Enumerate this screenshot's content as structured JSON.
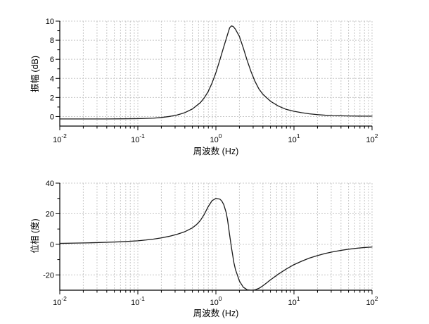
{
  "figure": {
    "background": "#ffffff",
    "description": "Two stacked frequency-response plots (amplitude and phase) versus frequency on a logarithmic axis"
  },
  "style": {
    "grid_color": "#c8c8c8",
    "axis_color": "#000000",
    "curve_color": "#1a1a1a"
  },
  "chart_data": [
    {
      "type": "line",
      "title": "",
      "xlabel": "周波数 (Hz)",
      "ylabel": "振幅 (dB)",
      "x_scale": "log",
      "xlim": [
        0.01,
        100
      ],
      "ylim": [
        -1,
        10
      ],
      "x_tick_base": "10",
      "x_tick_exponents": [
        -2,
        -1,
        0,
        1,
        2
      ],
      "y_major_ticks": [
        0,
        2,
        4,
        6,
        8,
        10
      ],
      "y_minor_ticks": [
        1,
        3,
        5,
        7,
        9
      ],
      "grid": {
        "vertical": "all log ticks",
        "horizontal": "major ticks",
        "line_style": "dashed"
      },
      "legend": null,
      "series": [
        {
          "name": "amplitude",
          "color": "#1a1a1a",
          "points": [
            [
              0.01,
              -0.25
            ],
            [
              0.0158,
              -0.25
            ],
            [
              0.0251,
              -0.25
            ],
            [
              0.0398,
              -0.25
            ],
            [
              0.0631,
              -0.24
            ],
            [
              0.1,
              -0.22
            ],
            [
              0.126,
              -0.2
            ],
            [
              0.158,
              -0.17
            ],
            [
              0.2,
              -0.1
            ],
            [
              0.251,
              0.0
            ],
            [
              0.316,
              0.15
            ],
            [
              0.398,
              0.4
            ],
            [
              0.501,
              0.8
            ],
            [
              0.631,
              1.45
            ],
            [
              0.708,
              1.95
            ],
            [
              0.794,
              2.6
            ],
            [
              0.891,
              3.5
            ],
            [
              1.0,
              4.6
            ],
            [
              1.12,
              5.9
            ],
            [
              1.26,
              7.3
            ],
            [
              1.41,
              8.6
            ],
            [
              1.5,
              9.3
            ],
            [
              1.58,
              9.5
            ],
            [
              1.66,
              9.45
            ],
            [
              1.78,
              9.15
            ],
            [
              2.0,
              8.4
            ],
            [
              2.24,
              7.2
            ],
            [
              2.51,
              5.9
            ],
            [
              2.82,
              4.7
            ],
            [
              3.16,
              3.7
            ],
            [
              3.55,
              2.9
            ],
            [
              3.98,
              2.35
            ],
            [
              5.01,
              1.6
            ],
            [
              6.31,
              1.1
            ],
            [
              7.94,
              0.75
            ],
            [
              10,
              0.55
            ],
            [
              12.6,
              0.4
            ],
            [
              15.8,
              0.28
            ],
            [
              20,
              0.2
            ],
            [
              25.1,
              0.14
            ],
            [
              31.6,
              0.1
            ],
            [
              39.8,
              0.08
            ],
            [
              50.1,
              0.06
            ],
            [
              63.1,
              0.05
            ],
            [
              79.4,
              0.04
            ],
            [
              100,
              0.04
            ]
          ]
        }
      ]
    },
    {
      "type": "line",
      "title": "",
      "xlabel": "周波数 (Hz)",
      "ylabel": "位相 (度)",
      "x_scale": "log",
      "xlim": [
        0.01,
        100
      ],
      "ylim": [
        -30,
        40
      ],
      "x_tick_base": "10",
      "x_tick_exponents": [
        -2,
        -1,
        0,
        1,
        2
      ],
      "y_major_ticks": [
        -20,
        0,
        20,
        40
      ],
      "y_minor_ticks": [
        -10,
        10,
        30
      ],
      "grid": {
        "vertical": "all log ticks",
        "horizontal": "major ticks",
        "line_style": "dashed"
      },
      "legend": null,
      "series": [
        {
          "name": "phase",
          "color": "#1a1a1a",
          "points": [
            [
              0.01,
              0.6
            ],
            [
              0.0158,
              0.8
            ],
            [
              0.0251,
              1.0
            ],
            [
              0.0398,
              1.3
            ],
            [
              0.0631,
              1.7
            ],
            [
              0.1,
              2.3
            ],
            [
              0.126,
              2.8
            ],
            [
              0.158,
              3.4
            ],
            [
              0.2,
              4.2
            ],
            [
              0.251,
              5.2
            ],
            [
              0.316,
              6.5
            ],
            [
              0.398,
              8.2
            ],
            [
              0.501,
              10.8
            ],
            [
              0.562,
              12.8
            ],
            [
              0.631,
              15.5
            ],
            [
              0.708,
              19.5
            ],
            [
              0.794,
              24.5
            ],
            [
              0.891,
              28.5
            ],
            [
              1.0,
              30.0
            ],
            [
              1.12,
              29.6
            ],
            [
              1.19,
              28.3
            ],
            [
              1.26,
              26.0
            ],
            [
              1.35,
              21.0
            ],
            [
              1.41,
              16.0
            ],
            [
              1.5,
              6.0
            ],
            [
              1.58,
              -2.0
            ],
            [
              1.7,
              -12.0
            ],
            [
              1.78,
              -16.5
            ],
            [
              2.0,
              -24.0
            ],
            [
              2.24,
              -28.0
            ],
            [
              2.51,
              -29.7
            ],
            [
              2.82,
              -30.0
            ],
            [
              3.16,
              -29.8
            ],
            [
              3.55,
              -28.8
            ],
            [
              3.98,
              -27.2
            ],
            [
              4.47,
              -25.2
            ],
            [
              5.01,
              -23.2
            ],
            [
              6.31,
              -19.5
            ],
            [
              7.94,
              -16.2
            ],
            [
              10,
              -13.3
            ],
            [
              12.6,
              -11.0
            ],
            [
              15.8,
              -9.0
            ],
            [
              20,
              -7.4
            ],
            [
              25.1,
              -6.0
            ],
            [
              31.6,
              -4.9
            ],
            [
              39.8,
              -4.0
            ],
            [
              50.1,
              -3.2
            ],
            [
              63.1,
              -2.6
            ],
            [
              79.4,
              -2.1
            ],
            [
              100,
              -1.8
            ]
          ]
        }
      ]
    }
  ]
}
